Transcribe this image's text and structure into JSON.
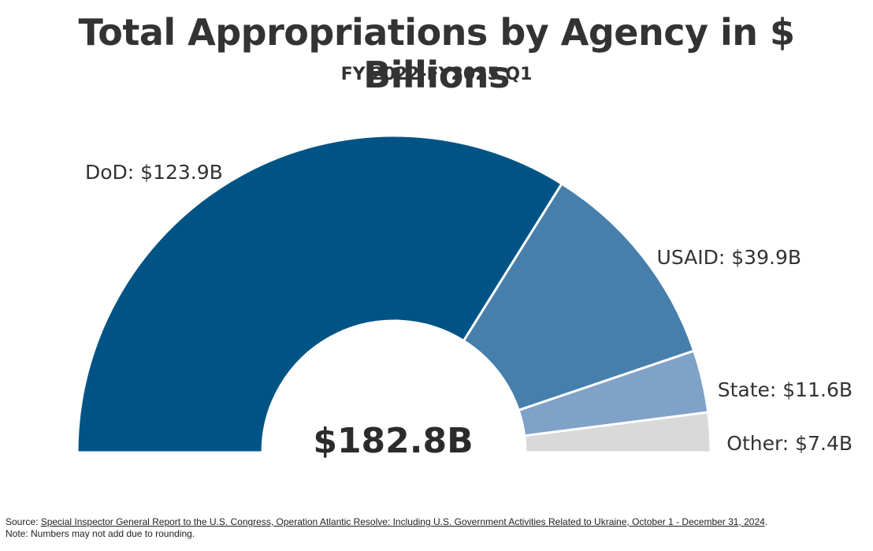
{
  "chart_data": {
    "type": "pie",
    "variant": "semi-donut",
    "title": "Total Appropriations by Agency in $ Billions",
    "subtitle": "FY 2022-FY2025 Q1",
    "total_label": "$182.8B",
    "slices": [
      {
        "category": "DoD",
        "value": 123.9,
        "label": "DoD: $123.9B",
        "color": "#005485"
      },
      {
        "category": "USAID",
        "value": 39.9,
        "label": "USAID: $39.9B",
        "color": "#467fac"
      },
      {
        "category": "State",
        "value": 11.6,
        "label": "State: $11.6B",
        "color": "#80a2c8"
      },
      {
        "category": "Other",
        "value": 7.4,
        "label": "Other: $7.4B",
        "color": "#d9d9d9"
      }
    ]
  },
  "footer": {
    "source_prefix": "Source: ",
    "source_link": "Special Inspector General Report to the U.S. Congress, Operation Atlantic Resolve: Including U.S. Government Activities Related to Ukraine, October 1 - December 31, 2024",
    "source_suffix": ".",
    "note": "Note: Numbers may not add due to rounding."
  }
}
